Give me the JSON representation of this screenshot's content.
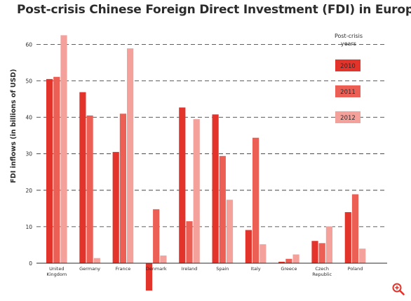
{
  "chart_data": {
    "type": "bar",
    "title": "Post-crisis Chinese Foreign Direct Investment (FDI) in Europe",
    "xlabel": "",
    "ylabel": "FDI inflows (in billions of USD)",
    "ylim": [
      -7,
      62
    ],
    "yticks": [
      0,
      10,
      20,
      30,
      40,
      50,
      60
    ],
    "grid": true,
    "legend_title": [
      "Post-crisis",
      "years"
    ],
    "legend_position": "top-right",
    "categories": [
      "United Kingdom",
      "Germany",
      "France",
      "Denmark",
      "Ireland",
      "Spain",
      "Italy",
      "Greece",
      "Czech Republic",
      "Poland"
    ],
    "category_labels": [
      [
        "United",
        "Kingdom"
      ],
      [
        "Germany"
      ],
      [
        "France"
      ],
      [
        "Denmark"
      ],
      [
        "Ireland"
      ],
      [
        "Spain"
      ],
      [
        "Italy"
      ],
      [
        "Greece"
      ],
      [
        "Czech",
        "Republic"
      ],
      [
        "Poland"
      ]
    ],
    "series": [
      {
        "name": "2010",
        "color": "#e2342b",
        "values": [
          50.5,
          46.9,
          30.5,
          -7.5,
          42.7,
          40.8,
          9.1,
          0.4,
          6.1,
          14.0
        ]
      },
      {
        "name": "2011",
        "color": "#ec5f55",
        "values": [
          51.1,
          40.5,
          41.0,
          14.8,
          11.5,
          29.4,
          34.4,
          1.2,
          5.5,
          18.9
        ]
      },
      {
        "name": "2012",
        "color": "#f4a19b",
        "values": [
          62.5,
          1.4,
          58.9,
          2.1,
          39.5,
          17.4,
          5.2,
          2.4,
          10.1,
          4.0
        ]
      }
    ]
  },
  "ui": {
    "zoom_icon": "zoom-in-icon"
  }
}
